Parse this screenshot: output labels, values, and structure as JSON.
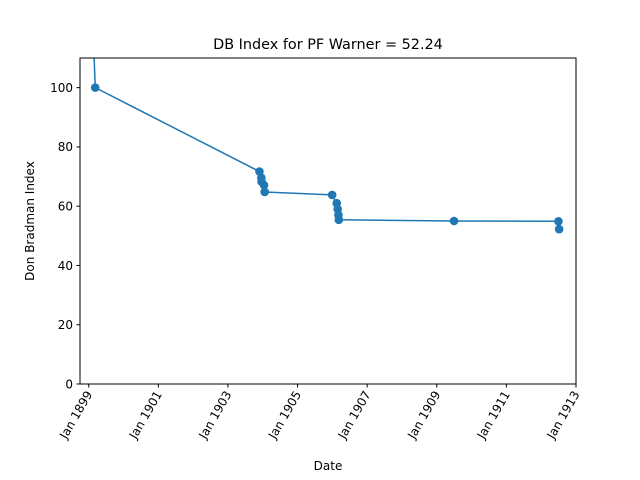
{
  "chart_data": {
    "type": "line",
    "title": "DB Index for PF Warner = 52.24",
    "xlabel": "Date",
    "ylabel": "Don Bradman Index",
    "x_axis": {
      "scale": "time",
      "range": [
        "1898-10-01",
        "1913-01-01"
      ],
      "ticks": [
        {
          "date": "1899-01-01",
          "label": "Jan 1899"
        },
        {
          "date": "1901-01-01",
          "label": "Jan 1901"
        },
        {
          "date": "1903-01-01",
          "label": "Jan 1903"
        },
        {
          "date": "1905-01-01",
          "label": "Jan 1905"
        },
        {
          "date": "1907-01-01",
          "label": "Jan 1907"
        },
        {
          "date": "1909-01-01",
          "label": "Jan 1909"
        },
        {
          "date": "1911-01-01",
          "label": "Jan 1911"
        },
        {
          "date": "1913-01-01",
          "label": "Jan 1913"
        }
      ]
    },
    "y_axis": {
      "range": [
        0,
        110
      ],
      "ticks": [
        0,
        20,
        40,
        60,
        80,
        100
      ]
    },
    "grid": false,
    "legend": "none",
    "series": [
      {
        "color": "#1f77b4",
        "marker": "circle",
        "points": [
          {
            "x": "1899-02-01",
            "y": 132
          },
          {
            "x": "1899-03-10",
            "y": 100,
            "marker": true
          },
          {
            "x": "1903-11-28",
            "y": 71.7,
            "marker": true
          },
          {
            "x": "1903-12-18",
            "y": 69.6,
            "marker": true
          },
          {
            "x": "1903-12-20",
            "y": 68.3,
            "marker": true
          },
          {
            "x": "1904-01-15",
            "y": 67.1,
            "marker": true
          },
          {
            "x": "1904-01-22",
            "y": 64.8,
            "marker": true
          },
          {
            "x": "1905-12-30",
            "y": 63.8,
            "marker": true
          },
          {
            "x": "1906-02-16",
            "y": 61.0,
            "marker": true
          },
          {
            "x": "1906-02-26",
            "y": 59.0,
            "marker": true
          },
          {
            "x": "1906-03-06",
            "y": 57.0,
            "marker": true
          },
          {
            "x": "1906-03-10",
            "y": 55.4,
            "marker": true
          },
          {
            "x": "1909-07-01",
            "y": 55.0,
            "marker": true
          },
          {
            "x": "1912-07-01",
            "y": 54.9,
            "marker": true
          },
          {
            "x": "1912-07-08",
            "y": 52.24,
            "marker": true
          }
        ]
      }
    ]
  }
}
